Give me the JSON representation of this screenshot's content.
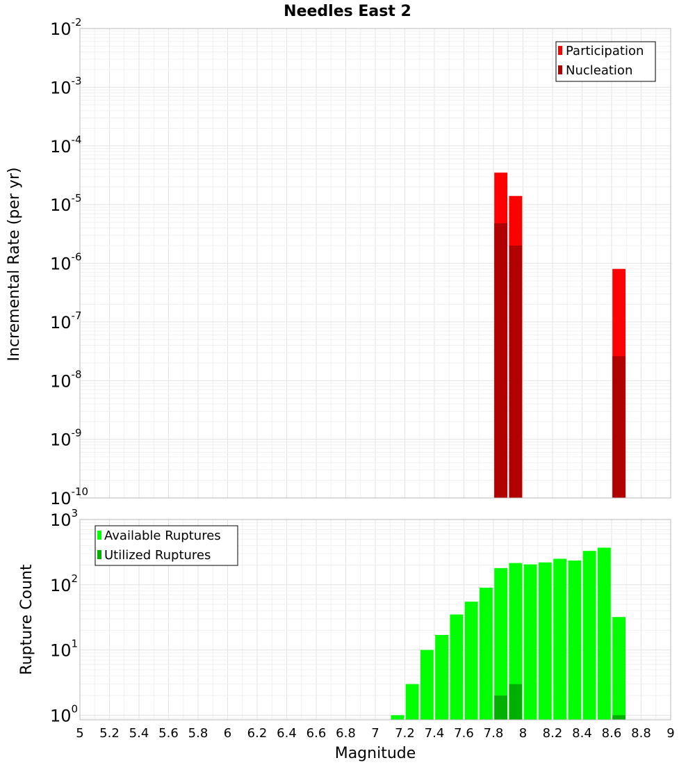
{
  "chart_data": [
    {
      "type": "bar",
      "title": "Needles East 2",
      "xlabel": "",
      "ylabel": "Incremental Rate (per yr)",
      "yscale": "log",
      "ylim": [
        1e-10,
        0.01
      ],
      "xlim": [
        5,
        9
      ],
      "bin_width": 0.1,
      "legend": {
        "placement": "top-right",
        "entries": [
          "Participation",
          "Nucleation"
        ]
      },
      "colors": {
        "Participation": "#ff0000",
        "Nucleation": "#b00000"
      },
      "series": [
        {
          "name": "Participation",
          "x": [
            7.85,
            7.95,
            8.65
          ],
          "values": [
            3.5e-05,
            1.4e-05,
            8e-07
          ]
        },
        {
          "name": "Nucleation",
          "x": [
            7.85,
            7.95,
            8.65
          ],
          "values": [
            4.8e-06,
            2e-06,
            2.6e-08
          ]
        }
      ],
      "ytick_labels": [
        {
          "base": "10",
          "exp": "-10"
        },
        {
          "base": "10",
          "exp": "-9"
        },
        {
          "base": "10",
          "exp": "-8"
        },
        {
          "base": "10",
          "exp": "-7"
        },
        {
          "base": "10",
          "exp": "-6"
        },
        {
          "base": "10",
          "exp": "-5"
        },
        {
          "base": "10",
          "exp": "-4"
        },
        {
          "base": "10",
          "exp": "-3"
        },
        {
          "base": "10",
          "exp": "-2"
        }
      ]
    },
    {
      "type": "bar",
      "title": "",
      "xlabel": "Magnitude",
      "ylabel": "Rupture Count",
      "yscale": "log",
      "ylim": [
        0.85,
        1000
      ],
      "xlim": [
        5,
        9
      ],
      "bin_width": 0.1,
      "legend": {
        "placement": "top-left",
        "entries": [
          "Available Ruptures",
          "Utilized Ruptures"
        ]
      },
      "colors": {
        "Available Ruptures": "#00ff00",
        "Utilized Ruptures": "#00b000"
      },
      "series": [
        {
          "name": "Available Ruptures",
          "x": [
            7.15,
            7.25,
            7.35,
            7.45,
            7.55,
            7.65,
            7.75,
            7.85,
            7.95,
            8.05,
            8.15,
            8.25,
            8.35,
            8.45,
            8.55,
            8.65
          ],
          "values": [
            1,
            3,
            10,
            17,
            35,
            55,
            90,
            180,
            215,
            205,
            220,
            250,
            235,
            330,
            370,
            32
          ]
        },
        {
          "name": "Utilized Ruptures",
          "x": [
            7.85,
            7.95,
            8.65
          ],
          "values": [
            2,
            3,
            1
          ]
        }
      ],
      "xtick_labels": [
        "5",
        "5.2",
        "5.4",
        "5.6",
        "5.8",
        "6",
        "6.2",
        "6.4",
        "6.6",
        "6.8",
        "7",
        "7.2",
        "7.4",
        "7.6",
        "7.8",
        "8",
        "8.2",
        "8.4",
        "8.6",
        "8.8",
        "9"
      ],
      "ytick_labels": [
        {
          "base": "10",
          "exp": "0"
        },
        {
          "base": "10",
          "exp": "1"
        },
        {
          "base": "10",
          "exp": "2"
        },
        {
          "base": "10",
          "exp": "3"
        }
      ]
    }
  ]
}
